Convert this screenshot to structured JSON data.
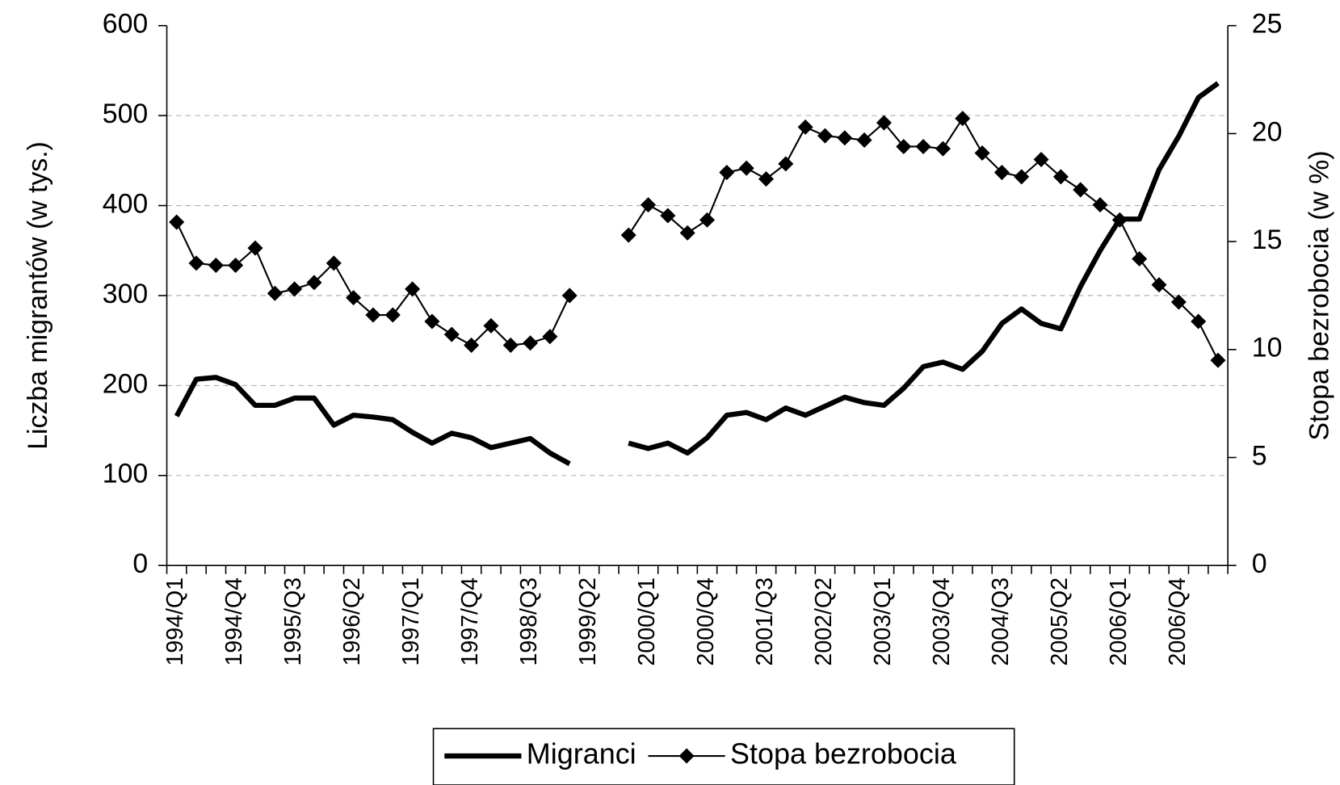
{
  "chart_data": {
    "type": "line",
    "ylabel": "Liczba migrantów (w tys.)",
    "y2label": "Stopa bezrobocia (w %)",
    "categories": [
      "1994/Q1",
      null,
      null,
      "1994/Q4",
      null,
      null,
      "1995/Q3",
      null,
      null,
      "1996/Q2",
      null,
      null,
      "1997/Q1",
      null,
      null,
      "1997/Q4",
      null,
      null,
      "1998/Q3",
      null,
      null,
      "1999/Q2",
      null,
      null,
      "2000/Q1",
      null,
      null,
      "2000/Q4",
      null,
      null,
      "2001/Q3",
      null,
      null,
      "2002/Q2",
      null,
      null,
      "2003/Q1",
      null,
      null,
      "2003/Q4",
      null,
      null,
      "2004/Q3",
      null,
      null,
      "2005/Q2",
      null,
      null,
      "2006/Q1",
      null,
      null,
      "2006/Q4",
      null,
      null
    ],
    "series": [
      {
        "name": "Migranci",
        "color": "#000000",
        "axis": "y",
        "values": [
          166,
          207,
          209,
          201,
          178,
          178,
          186,
          186,
          156,
          167,
          165,
          162,
          148,
          136,
          147,
          142,
          131,
          136,
          141,
          125,
          113,
          null,
          null,
          136,
          130,
          136,
          125,
          142,
          167,
          170,
          162,
          175,
          167,
          177,
          187,
          181,
          178,
          197,
          221,
          226,
          218,
          238,
          269,
          285,
          269,
          263,
          310,
          350,
          385,
          385,
          440,
          477,
          520,
          536
        ]
      },
      {
        "name": "Stopa bezrobocia",
        "color": "#000000",
        "axis": "y2",
        "marker": "diamond",
        "values": [
          15.9,
          14.0,
          13.9,
          13.9,
          14.7,
          12.6,
          12.8,
          13.1,
          14.0,
          12.4,
          11.6,
          11.6,
          12.8,
          11.3,
          10.7,
          10.2,
          11.1,
          10.2,
          10.3,
          10.6,
          12.5,
          null,
          null,
          15.3,
          16.7,
          16.2,
          15.4,
          16.0,
          18.2,
          18.4,
          17.9,
          18.6,
          20.3,
          19.9,
          19.8,
          19.7,
          20.5,
          19.4,
          19.4,
          19.3,
          20.7,
          19.1,
          18.2,
          18.0,
          18.8,
          18.0,
          17.4,
          16.7,
          16.0,
          14.2,
          13.0,
          12.2,
          11.3,
          9.5
        ]
      }
    ],
    "ylim": [
      0,
      600
    ],
    "yticks": [
      0,
      100,
      200,
      300,
      400,
      500,
      600
    ],
    "y2lim": [
      0,
      25
    ],
    "y2ticks": [
      0,
      5,
      10,
      15,
      20,
      25
    ],
    "grid": true,
    "legend": "bottom"
  }
}
